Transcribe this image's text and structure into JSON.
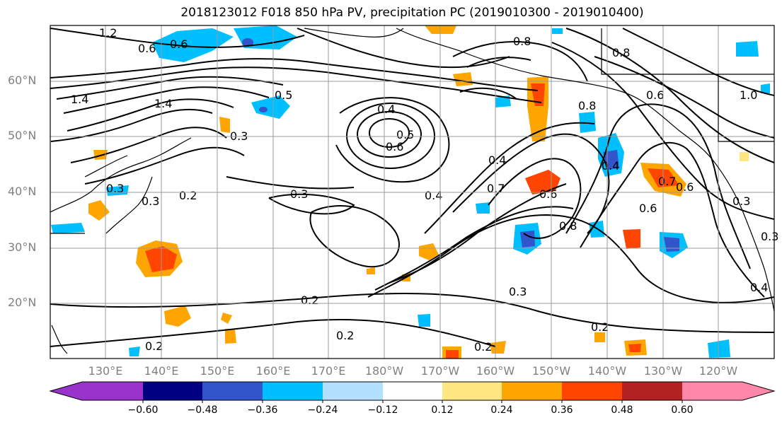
{
  "title": "2018123012 F018 850 hPa PV, precipitation PC (2019010300 - 2019010400)",
  "lat_labels": [
    "60°N",
    "50°N",
    "40°N",
    "30°N",
    "20°N"
  ],
  "lon_labels": [
    "130°E",
    "140°E",
    "150°E",
    "160°E",
    "170°E",
    "180°W",
    "170°W",
    "160°W",
    "150°W",
    "140°W",
    "130°W",
    "120°W"
  ],
  "contour_labels": [
    "1.2",
    "0.6",
    "0.6",
    "1.4",
    "1.4",
    "0.3",
    "0.3",
    "0.2",
    "0.3",
    "0.4",
    "0.5",
    "0.6",
    "0.4",
    "0.4",
    "0.7",
    "0.6",
    "0.8",
    "0.8",
    "0.6",
    "0.4",
    "0.3",
    "0.2",
    "0.2",
    "0.2",
    "0.2",
    "0.2",
    "0.3",
    "0.6",
    "0.4",
    "0.8",
    "0.5",
    "1.0",
    "0.8",
    "0.6",
    "0.3",
    "0.7",
    "0.3"
  ],
  "colorbar": {
    "tick_labels": [
      "−0.60",
      "−0.48",
      "−0.36",
      "−0.24",
      "−0.12",
      "0.12",
      "0.24",
      "0.36",
      "0.48",
      "0.60"
    ],
    "colors": [
      "#9933cc",
      "#000080",
      "#3355cc",
      "#00bfff",
      "#b3e0ff",
      "#ffffff",
      "#ffe680",
      "#ffa500",
      "#ff4500",
      "#b22222",
      "#ff88aa",
      "#ff88aa"
    ]
  }
}
